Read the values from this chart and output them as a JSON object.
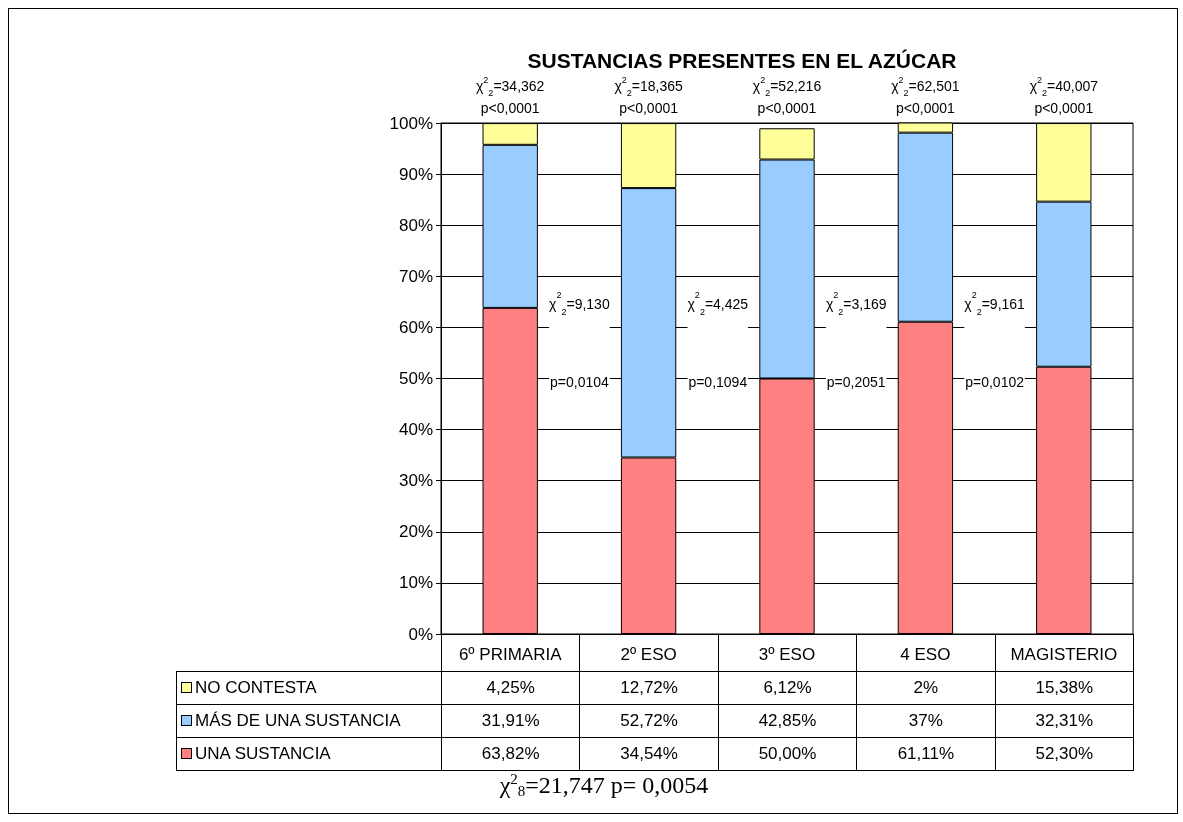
{
  "chart_data": {
    "type": "bar",
    "title": "SUSTANCIAS PRESENTES EN EL AZÚCAR",
    "categories": [
      "6º PRIMARIA",
      "2º ESO",
      "3º ESO",
      "4 ESO",
      "MAGISTERIO"
    ],
    "stacked": true,
    "series": [
      {
        "name": "UNA SUSTANCIA",
        "color": "#ff8080",
        "values": [
          63.82,
          34.54,
          50.0,
          61.11,
          52.3
        ],
        "value_labels": [
          "63,82%",
          "34,54%",
          "50,00%",
          "61,11%",
          "52,30%"
        ]
      },
      {
        "name": "MÁS DE UNA SUSTANCIA",
        "color": "#99ccff",
        "values": [
          31.91,
          52.72,
          42.85,
          37,
          32.31
        ],
        "value_labels": [
          "31,91%",
          "52,72%",
          "42,85%",
          "37%",
          "32,31%"
        ]
      },
      {
        "name": "NO CONTESTA",
        "color": "#ffff99",
        "values": [
          4.25,
          12.72,
          6.12,
          2,
          15.38
        ],
        "value_labels": [
          "4,25%",
          "12,72%",
          "6,12%",
          "2%",
          "15,38%"
        ]
      }
    ],
    "ylim": [
      0,
      100
    ],
    "yticks": [
      {
        "value": 0,
        "label": "0%"
      },
      {
        "value": 10,
        "label": "10%"
      },
      {
        "value": 20,
        "label": "20%"
      },
      {
        "value": 30,
        "label": "30%"
      },
      {
        "value": 40,
        "label": "40%"
      },
      {
        "value": 50,
        "label": "50%"
      },
      {
        "value": 60,
        "label": "60%"
      },
      {
        "value": 70,
        "label": "70%"
      },
      {
        "value": 80,
        "label": "80%"
      },
      {
        "value": 90,
        "label": "90%"
      },
      {
        "value": 100,
        "label": "100%"
      }
    ],
    "grid": "y",
    "legend": "bottom left",
    "annotations": [
      "χ$^{2}$$_{2}$=34,362\np<0,0001",
      "χ$^{2}$$_{2}$=18,365\np<0,0001",
      "χ$^{2}$$_{2}$=52,216\np<0,0001",
      "χ$^{2}$$_{2}$=62,501\np<0,0001",
      "χ$^{2}$$_{2}$=40,007\np<0,0001",
      "χ$^{2}$$_{2}$=9,130\n\n\np=0,0104",
      "χ$^{2}$$_{2}$=4,425\n\n\np=0,1094",
      "χ$^{2}$$_{2}$=3,169\n\n\np=0,2051",
      "χ$^{2}$$_{2}$=9,161\n\n\np=0,0102",
      "χ$^{2}$$_{8}$=21,747 p= 0,0054"
    ]
  }
}
